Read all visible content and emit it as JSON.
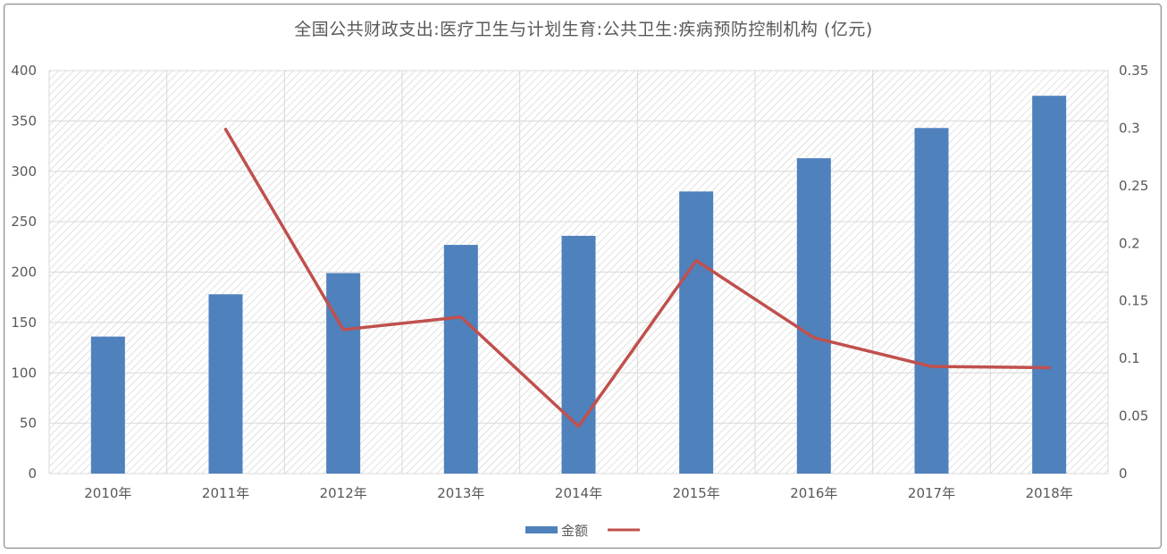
{
  "chart_data": {
    "type": "bar",
    "title": "全国公共财政支出:医疗卫生与计划生育:公共卫生:疾病预防控制机构 (亿元)",
    "categories": [
      "2010年",
      "2011年",
      "2012年",
      "2013年",
      "2014年",
      "2015年",
      "2016年",
      "2017年",
      "2018年"
    ],
    "ylim": [
      0,
      400
    ],
    "yticks": [
      "0",
      "50",
      "100",
      "150",
      "200",
      "250",
      "300",
      "350",
      "400"
    ],
    "y2lim": [
      0,
      0.35
    ],
    "y2ticks": [
      "0",
      "0.05",
      "0.1",
      "0.15",
      "0.2",
      "0.25",
      "0.3",
      "0.35"
    ],
    "grid": true,
    "legend_position": "bottom",
    "series": [
      {
        "name": "金额",
        "type": "bar",
        "axis": "left",
        "color": "#4f81bd",
        "values": [
          136,
          178,
          199,
          227,
          236,
          280,
          313,
          343,
          375
        ]
      },
      {
        "name": "",
        "type": "line",
        "axis": "right",
        "color": "#c0504d",
        "values": [
          null,
          0.299,
          0.125,
          0.136,
          0.041,
          0.185,
          0.118,
          0.093,
          0.092
        ]
      }
    ]
  }
}
